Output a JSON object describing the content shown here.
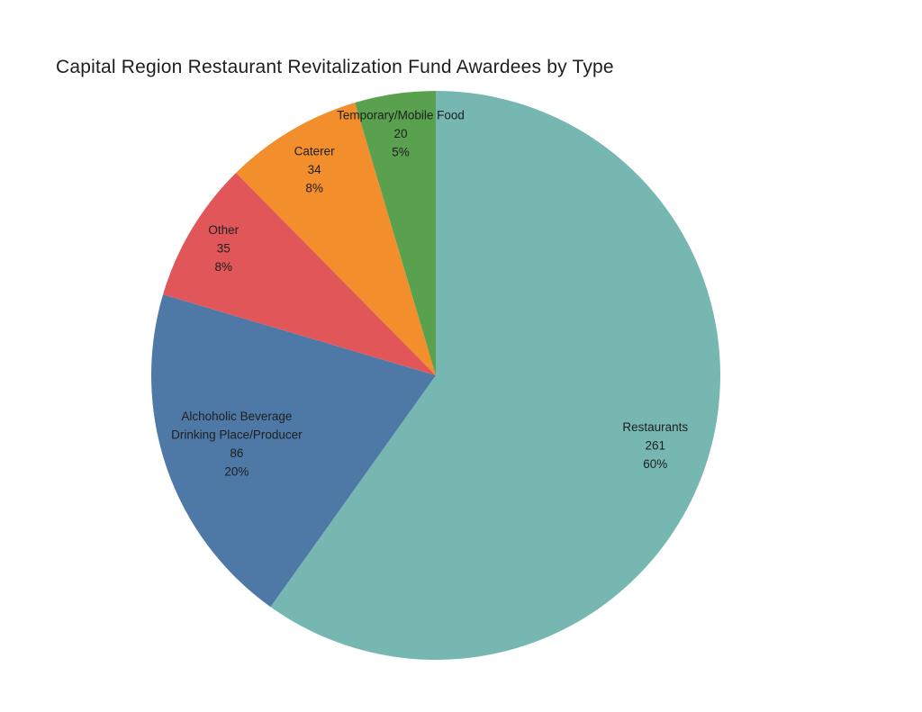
{
  "chart_data": {
    "type": "pie",
    "title": "Capital Region Restaurant Revitalization Fund Awardees by Type",
    "start_angle_deg": 0,
    "direction": "clockwise",
    "legend_position": "none",
    "label_style": "inside-slice: name, count, percent",
    "background_color": "#ffffff",
    "title_color": "#1e1e1e",
    "label_color": "#1e1e1e",
    "slices": [
      {
        "id": "restaurants",
        "label": "Restaurants",
        "value": 261,
        "pct_label": "60%",
        "color": "#76b7b2",
        "label_lines": [
          "Restaurants",
          "261",
          "60%"
        ],
        "label_radius_frac": 0.81
      },
      {
        "id": "alcoholic-beverage",
        "label": "Alchoholic Beverage Drinking Place/Producer",
        "value": 86,
        "pct_label": "20%",
        "color": "#4e79a7",
        "label_lines": [
          "Alchoholic Beverage",
          "Drinking Place/Producer",
          "86",
          "20%"
        ],
        "label_radius_frac": 0.74
      },
      {
        "id": "other",
        "label": "Other",
        "value": 35,
        "pct_label": "8%",
        "color": "#e15759",
        "label_lines": [
          "Other",
          "35",
          "8%"
        ],
        "label_radius_frac": 0.87
      },
      {
        "id": "caterer",
        "label": "Caterer",
        "value": 34,
        "pct_label": "8%",
        "color": "#f28e2b",
        "label_lines": [
          "Caterer",
          "34",
          "8%"
        ],
        "label_radius_frac": 0.84
      },
      {
        "id": "temporary-mobile-food",
        "label": "Temporary/Mobile Food",
        "value": 20,
        "pct_label": "5%",
        "color": "#59a14f",
        "label_lines": [
          "Temporary/Mobile Food",
          "20",
          "5%"
        ],
        "label_radius_frac": 0.86
      }
    ]
  }
}
